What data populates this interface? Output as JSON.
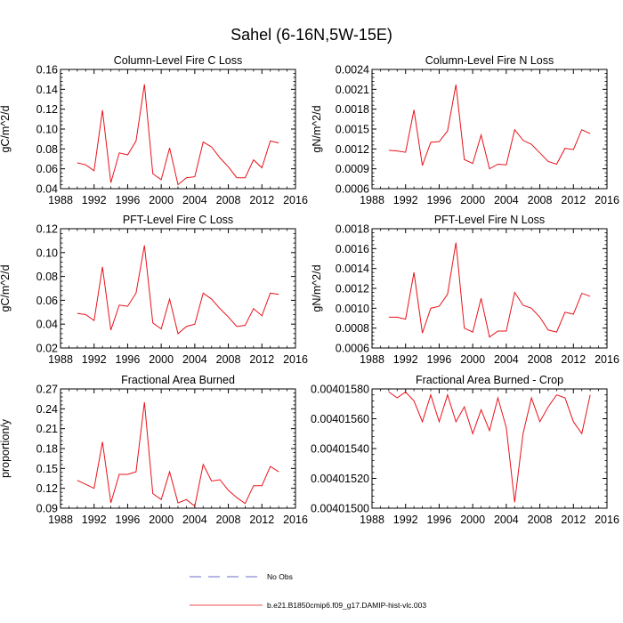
{
  "figure": {
    "title": "Sahel (6-16N,5W-15E)",
    "line_color": "#e8121a",
    "obs_color": "#3b3bbf"
  },
  "legend": {
    "obs_label": "No Obs",
    "model_label": "b.e21.B1850cmip6.f09_g17.DAMIP-hist-vlc.003"
  },
  "chart_data": [
    {
      "type": "line",
      "title": "Column-Level Fire C Loss",
      "ylabel": "gC/m^2/d",
      "xlabel": "",
      "xlim": [
        1988,
        2016
      ],
      "xticks": [
        "1988",
        "1992",
        "1996",
        "2000",
        "2004",
        "2008",
        "2012",
        "2016"
      ],
      "ylim": [
        0.04,
        0.16
      ],
      "yticks": [
        "0.04",
        "0.06",
        "0.08",
        "0.10",
        "0.12",
        "0.14",
        "0.16"
      ],
      "x": [
        1990,
        1991,
        1992,
        1993,
        1994,
        1995,
        1996,
        1997,
        1998,
        1999,
        2000,
        2001,
        2002,
        2003,
        2004,
        2005,
        2006,
        2007,
        2008,
        2009,
        2010,
        2011,
        2012,
        2013,
        2014
      ],
      "series": [
        {
          "name": "b.e21.B1850cmip6.f09_g17.DAMIP-hist-vlc.003",
          "values": [
            0.066,
            0.064,
            0.058,
            0.119,
            0.046,
            0.076,
            0.074,
            0.088,
            0.145,
            0.055,
            0.049,
            0.081,
            0.044,
            0.051,
            0.052,
            0.087,
            0.082,
            0.071,
            0.062,
            0.051,
            0.051,
            0.069,
            0.061,
            0.088,
            0.086
          ]
        }
      ]
    },
    {
      "type": "line",
      "title": "Column-Level Fire N Loss",
      "ylabel": "gN/m^2/d",
      "xlabel": "",
      "xlim": [
        1988,
        2016
      ],
      "xticks": [
        "1988",
        "1992",
        "1996",
        "2000",
        "2004",
        "2008",
        "2012",
        "2016"
      ],
      "ylim": [
        0.0006,
        0.0024
      ],
      "yticks": [
        "0.0006",
        "0.0009",
        "0.0012",
        "0.0015",
        "0.0018",
        "0.0021",
        "0.0024"
      ],
      "x": [
        1990,
        1991,
        1992,
        1993,
        1994,
        1995,
        1996,
        1997,
        1998,
        1999,
        2000,
        2001,
        2002,
        2003,
        2004,
        2005,
        2006,
        2007,
        2008,
        2009,
        2010,
        2011,
        2012,
        2013,
        2014
      ],
      "series": [
        {
          "name": "b.e21.B1850cmip6.f09_g17.DAMIP-hist-vlc.003",
          "values": [
            0.00118,
            0.00117,
            0.00115,
            0.00179,
            0.00095,
            0.0013,
            0.00131,
            0.00147,
            0.00217,
            0.00104,
            0.00098,
            0.00141,
            0.0009,
            0.00097,
            0.00096,
            0.00149,
            0.00133,
            0.00127,
            0.00114,
            0.00101,
            0.00097,
            0.00121,
            0.00119,
            0.00149,
            0.00143
          ]
        }
      ]
    },
    {
      "type": "line",
      "title": "PFT-Level Fire C Loss",
      "ylabel": "gC/m^2/d",
      "xlabel": "",
      "xlim": [
        1988,
        2016
      ],
      "xticks": [
        "1988",
        "1992",
        "1996",
        "2000",
        "2004",
        "2008",
        "2012",
        "2016"
      ],
      "ylim": [
        0.02,
        0.12
      ],
      "yticks": [
        "0.02",
        "0.04",
        "0.06",
        "0.08",
        "0.10",
        "0.12"
      ],
      "x": [
        1990,
        1991,
        1992,
        1993,
        1994,
        1995,
        1996,
        1997,
        1998,
        1999,
        2000,
        2001,
        2002,
        2003,
        2004,
        2005,
        2006,
        2007,
        2008,
        2009,
        2010,
        2011,
        2012,
        2013,
        2014
      ],
      "series": [
        {
          "name": "b.e21.B1850cmip6.f09_g17.DAMIP-hist-vlc.003",
          "values": [
            0.049,
            0.048,
            0.043,
            0.088,
            0.035,
            0.056,
            0.055,
            0.066,
            0.106,
            0.041,
            0.036,
            0.061,
            0.032,
            0.038,
            0.04,
            0.066,
            0.061,
            0.053,
            0.046,
            0.038,
            0.039,
            0.053,
            0.047,
            0.066,
            0.065
          ]
        }
      ]
    },
    {
      "type": "line",
      "title": "PFT-Level Fire N Loss",
      "ylabel": "gN/m^2/d",
      "xlabel": "",
      "xlim": [
        1988,
        2016
      ],
      "xticks": [
        "1988",
        "1992",
        "1996",
        "2000",
        "2004",
        "2008",
        "2012",
        "2016"
      ],
      "ylim": [
        0.0006,
        0.0018
      ],
      "yticks": [
        "0.0006",
        "0.0008",
        "0.0010",
        "0.0012",
        "0.0014",
        "0.0016",
        "0.0018"
      ],
      "x": [
        1990,
        1991,
        1992,
        1993,
        1994,
        1995,
        1996,
        1997,
        1998,
        1999,
        2000,
        2001,
        2002,
        2003,
        2004,
        2005,
        2006,
        2007,
        2008,
        2009,
        2010,
        2011,
        2012,
        2013,
        2014
      ],
      "series": [
        {
          "name": "b.e21.B1850cmip6.f09_g17.DAMIP-hist-vlc.003",
          "values": [
            0.00091,
            0.00091,
            0.00089,
            0.00136,
            0.00075,
            0.001,
            0.00102,
            0.00114,
            0.00166,
            0.0008,
            0.00076,
            0.0011,
            0.00071,
            0.00077,
            0.00077,
            0.00116,
            0.00103,
            0.001,
            0.00091,
            0.00078,
            0.00076,
            0.00096,
            0.00094,
            0.00115,
            0.00112
          ]
        }
      ]
    },
    {
      "type": "line",
      "title": "Fractional Area Burned",
      "ylabel": "proportion/y",
      "xlabel": "",
      "xlim": [
        1988,
        2016
      ],
      "xticks": [
        "1988",
        "1992",
        "1996",
        "2000",
        "2004",
        "2008",
        "2012",
        "2016"
      ],
      "ylim": [
        0.09,
        0.27
      ],
      "yticks": [
        "0.09",
        "0.12",
        "0.15",
        "0.18",
        "0.21",
        "0.24",
        "0.27"
      ],
      "x": [
        1990,
        1991,
        1992,
        1993,
        1994,
        1995,
        1996,
        1997,
        1998,
        1999,
        2000,
        2001,
        2002,
        2003,
        2004,
        2005,
        2006,
        2007,
        2008,
        2009,
        2010,
        2011,
        2012,
        2013,
        2014
      ],
      "series": [
        {
          "name": "b.e21.B1850cmip6.f09_g17.DAMIP-hist-vlc.003",
          "values": [
            0.132,
            0.126,
            0.12,
            0.19,
            0.098,
            0.141,
            0.141,
            0.145,
            0.25,
            0.112,
            0.103,
            0.145,
            0.098,
            0.103,
            0.093,
            0.156,
            0.131,
            0.133,
            0.117,
            0.106,
            0.097,
            0.124,
            0.124,
            0.153,
            0.145
          ]
        }
      ]
    },
    {
      "type": "line",
      "title": "Fractional Area Burned - Crop",
      "ylabel": "",
      "xlabel": "",
      "xlim": [
        1988,
        2016
      ],
      "xticks": [
        "1988",
        "1992",
        "1996",
        "2000",
        "2004",
        "2008",
        "2012",
        "2016"
      ],
      "ylim": [
        0.004015,
        0.0040158
      ],
      "yticks": [
        "0.00401500",
        "0.00401520",
        "0.00401540",
        "0.00401560",
        "0.00401580"
      ],
      "x": [
        1990,
        1991,
        1992,
        1993,
        1994,
        1995,
        1996,
        1997,
        1998,
        1999,
        2000,
        2001,
        2002,
        2003,
        2004,
        2005,
        2006,
        2007,
        2008,
        2009,
        2010,
        2011,
        2012,
        2013,
        2014
      ],
      "series": [
        {
          "name": "b.e21.B1850cmip6.f09_g17.DAMIP-hist-vlc.003",
          "values": [
            0.00401578,
            0.00401574,
            0.00401578,
            0.00401572,
            0.00401558,
            0.00401576,
            0.00401558,
            0.00401576,
            0.00401558,
            0.00401568,
            0.0040155,
            0.00401566,
            0.00401552,
            0.00401574,
            0.00401554,
            0.00401504,
            0.0040155,
            0.00401574,
            0.00401558,
            0.00401568,
            0.00401576,
            0.00401574,
            0.00401558,
            0.0040155,
            0.00401576
          ]
        }
      ]
    }
  ]
}
